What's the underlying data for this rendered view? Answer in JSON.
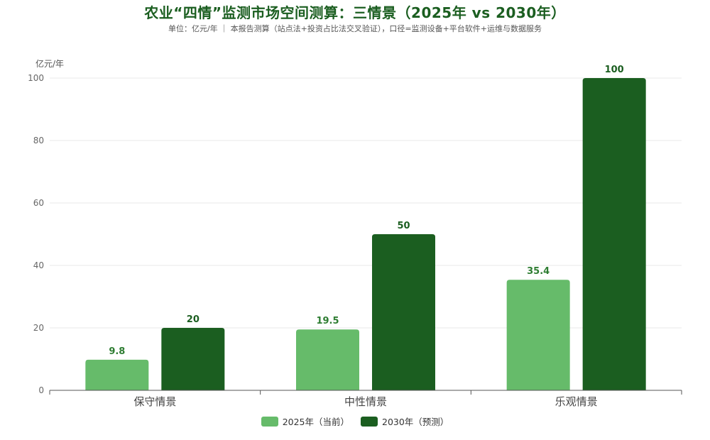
{
  "title": "农业“四情”监测市场空间测算：三情景（2025年 vs 2030年）",
  "subtitle": "单位：亿元/年 ｜ 本报告测算（站点法+投资占比法交叉验证），口径=监测设备+平台软件+运维与数据服务",
  "colors": {
    "series_2025": "#66bb6a",
    "series_2030": "#1b5e20",
    "label_2025": "#2e7d32",
    "label_2030": "#1b5e20"
  },
  "chart_data": {
    "type": "bar",
    "title": "农业“四情”监测市场空间测算：三情景（2025年 vs 2030年）",
    "ylabel": "亿元/年",
    "xlabel": "",
    "ylim": [
      0,
      100
    ],
    "yticks": [
      0,
      20,
      40,
      60,
      80,
      100
    ],
    "grid": true,
    "legend_position": "bottom",
    "categories": [
      "保守情景",
      "中性情景",
      "乐观情景"
    ],
    "series": [
      {
        "name": "2025年（当前）",
        "values": [
          9.8,
          19.5,
          35.4
        ]
      },
      {
        "name": "2030年（预测）",
        "values": [
          20,
          50,
          100
        ]
      }
    ]
  }
}
